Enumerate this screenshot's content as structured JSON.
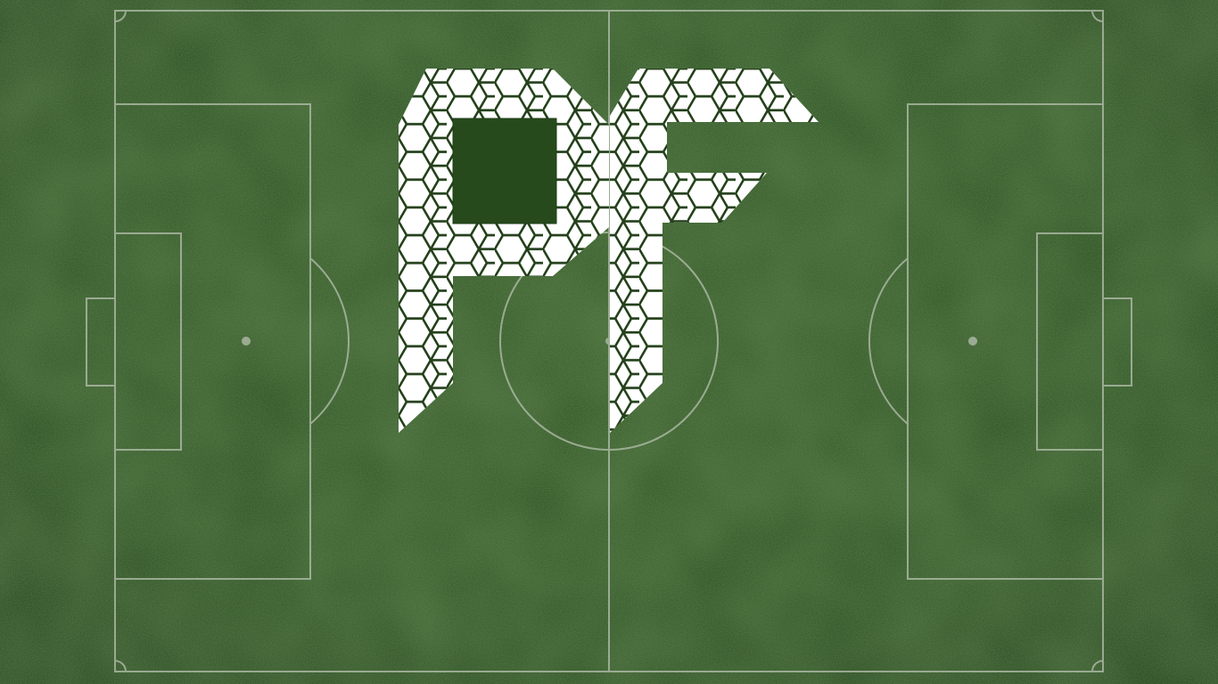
{
  "logo": {
    "text": "PF",
    "fill_color": "#ffffff",
    "pattern_line_color": "#23401a"
  },
  "pitch": {
    "grass_color_base": "#2a4d1f",
    "grass_color_dark": "#1f3d17",
    "grass_color_light": "#3a6128",
    "line_color": "#b7c1b0"
  }
}
